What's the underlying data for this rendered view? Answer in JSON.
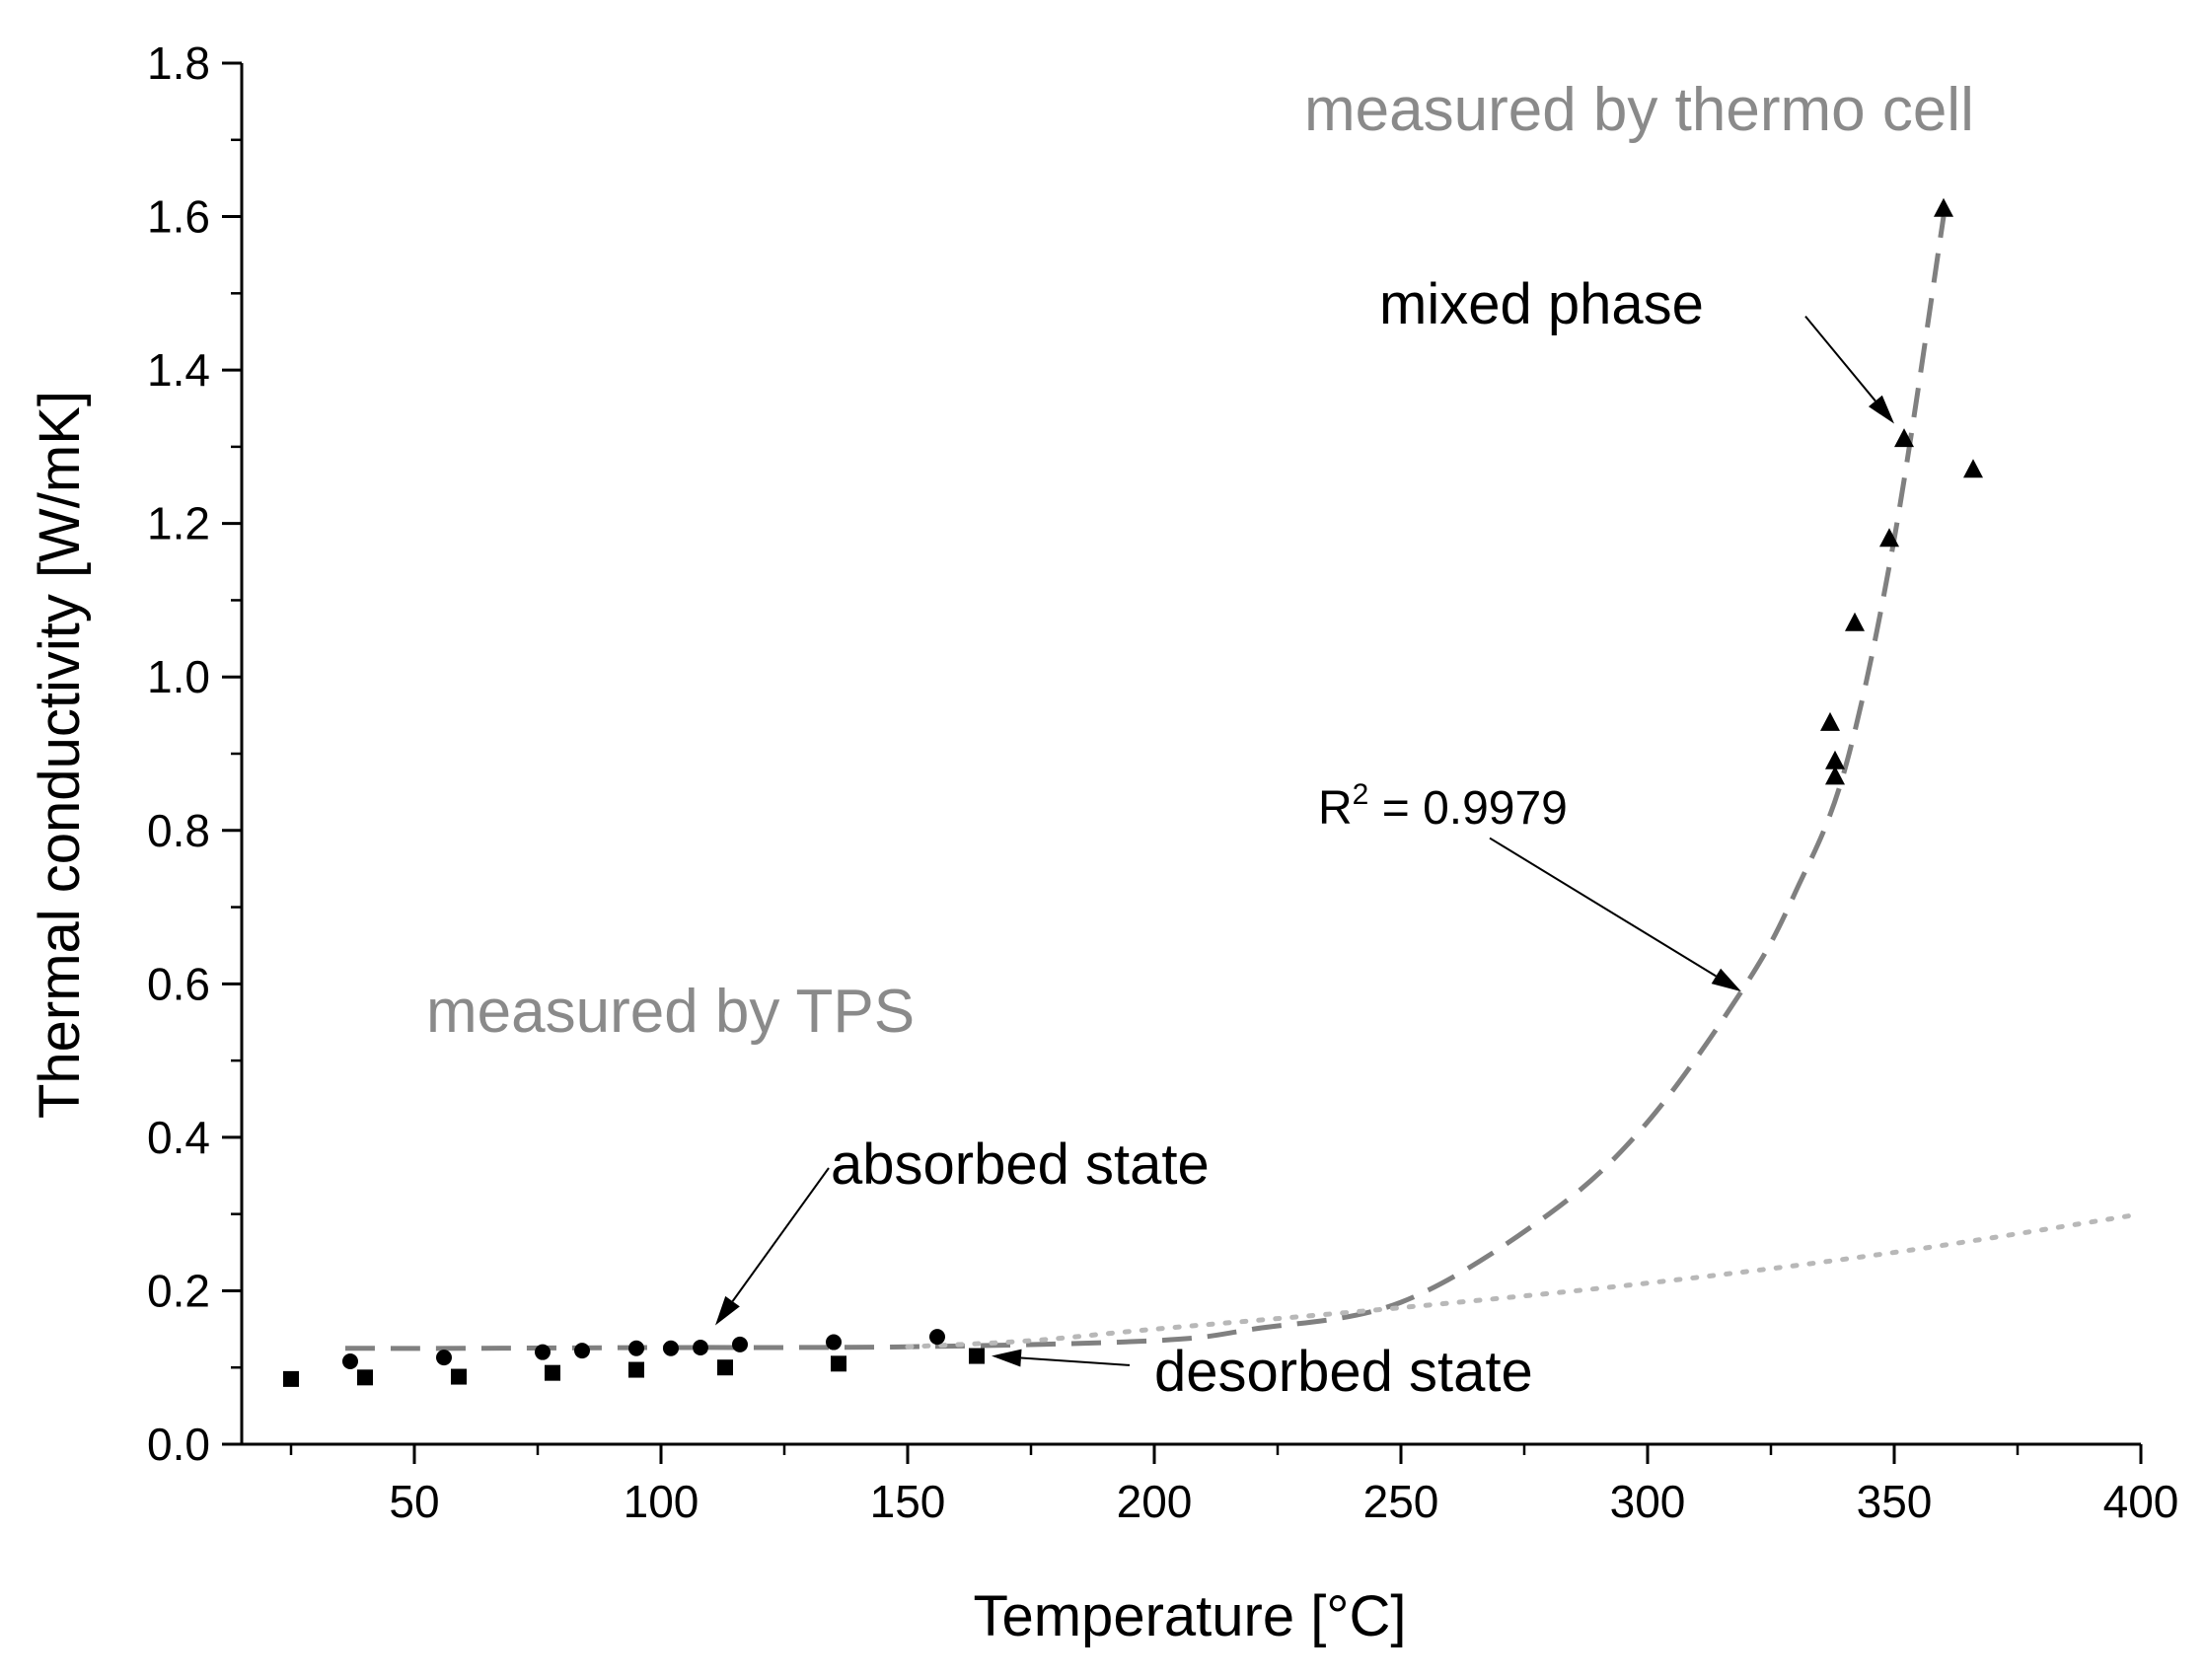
{
  "chart_data": {
    "type": "scatter",
    "title": "",
    "xlabel": "Temperature [°C]",
    "ylabel": "Thermal conductivity [W/mK]",
    "xlim": [
      15,
      400
    ],
    "ylim": [
      0,
      1.8
    ],
    "xticks": [
      50,
      100,
      150,
      200,
      250,
      300,
      350,
      400
    ],
    "xtick_labels": [
      "50",
      "100",
      "150",
      "200",
      "250",
      "300",
      "350",
      "400"
    ],
    "yticks": [
      0,
      0.2,
      0.4,
      0.6,
      0.8,
      1.0,
      1.2,
      1.4,
      1.6,
      1.8
    ],
    "ytick_labels": [
      "0.0",
      "0.2",
      "0.4",
      "0.6",
      "0.8",
      "1.0",
      "1.2",
      "1.4",
      "1.6",
      "1.8"
    ],
    "series": [
      {
        "name": "desorbed state",
        "marker": "square",
        "x": [
          25,
          40,
          59,
          78,
          95,
          113,
          136,
          164
        ],
        "y": [
          0.085,
          0.087,
          0.088,
          0.093,
          0.097,
          0.1,
          0.105,
          0.115
        ]
      },
      {
        "name": "absorbed state",
        "marker": "circle",
        "x": [
          37,
          56,
          76,
          84,
          95,
          102,
          108,
          116,
          135,
          156
        ],
        "y": [
          0.108,
          0.113,
          0.12,
          0.122,
          0.125,
          0.125,
          0.126,
          0.13,
          0.133,
          0.14
        ]
      },
      {
        "name": "mixed phase",
        "marker": "triangle",
        "x": [
          337,
          338,
          338,
          342,
          349,
          352,
          360,
          366
        ],
        "y": [
          0.94,
          0.87,
          0.89,
          1.07,
          1.18,
          1.31,
          1.61,
          1.27
        ]
      },
      {
        "name": "fit (dashed)",
        "style": "dashed",
        "x": [
          36,
          60,
          100,
          150,
          200,
          220,
          250,
          280,
          300,
          320,
          330,
          340,
          350,
          360
        ],
        "y": [
          0.125,
          0.125,
          0.126,
          0.127,
          0.135,
          0.15,
          0.185,
          0.3,
          0.42,
          0.6,
          0.72,
          0.88,
          1.18,
          1.6
        ]
      },
      {
        "name": "fit (dotted)",
        "style": "dotted",
        "x": [
          150,
          175,
          200,
          250,
          300,
          350,
          400
        ],
        "y": [
          0.127,
          0.135,
          0.15,
          0.178,
          0.21,
          0.25,
          0.3
        ]
      }
    ],
    "annotations": {
      "thermo_cell": "measured by thermo cell",
      "tps": "measured by TPS",
      "mixed_phase": "mixed phase",
      "r2_prefix": "R",
      "r2_sup": "2",
      "r2_value": " = 0.9979",
      "absorbed": "absorbed state",
      "desorbed": "desorbed state"
    },
    "arrows": [
      {
        "name": "mixed-phase-arrow",
        "from": [
          332,
          1.47
        ],
        "to": [
          350,
          1.33
        ]
      },
      {
        "name": "r2-arrow",
        "from": [
          268,
          0.79
        ],
        "to": [
          319,
          0.59
        ]
      },
      {
        "name": "absorbed-arrow",
        "from": [
          134,
          0.36
        ],
        "to": [
          111,
          0.155
        ]
      },
      {
        "name": "desorbed-arrow",
        "from": [
          195,
          0.103
        ],
        "to": [
          167,
          0.115
        ]
      }
    ],
    "colors": {
      "axis": "#000000",
      "marker": "#000000",
      "dashed": "#808080",
      "dotted": "#b8b8b8",
      "gray_text": "#8a8a8a"
    }
  }
}
